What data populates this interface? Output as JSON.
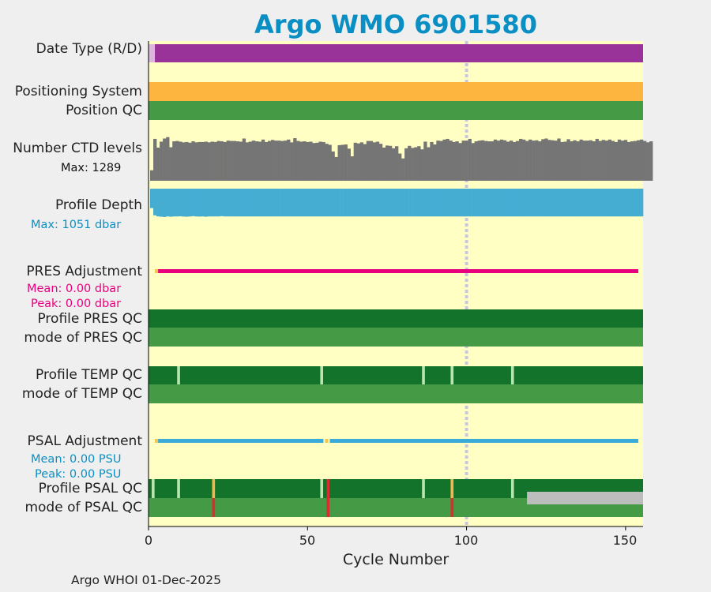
{
  "title": "Argo WMO 6901580",
  "footer": "Argo WHOI 01-Dec-2025",
  "colors": {
    "background": "#ffffc3",
    "data_type": "#993399",
    "data_type_realtime": "#ddb8dd",
    "positioning": "#fdb53f",
    "qc_good_light": "#459b45",
    "qc_good_dark": "#13732b",
    "qc_gap": "#b9e5b0",
    "qc_orange": "#f7b54d",
    "qc_red": "#d92e2e",
    "qc_grey": "#bdbdbd",
    "ctd": "#757575",
    "depth": "#45acd2",
    "pres_adj": "#e8007e",
    "psal_adj": "#3aaad8",
    "psal_adj_gap": "#f3c552",
    "marker_line": "#c6c6e6",
    "title": "#0a8fc4"
  },
  "rows": {
    "data_type": "Date Type (R/D)",
    "positioning_system": "Positioning System",
    "position_qc": "Position QC",
    "ctd_levels": "Number CTD levels",
    "ctd_max": "Max: 1289",
    "profile_depth": "Profile Depth",
    "depth_max": "Max: 1051 dbar",
    "pres_adjustment": "PRES Adjustment",
    "pres_mean": "Mean: 0.00 dbar",
    "pres_peak": "Peak: 0.00 dbar",
    "profile_pres_qc": "Profile PRES QC",
    "mode_pres_qc": "mode of PRES QC",
    "profile_temp_qc": "Profile TEMP QC",
    "mode_temp_qc": "mode of TEMP QC",
    "psal_adjustment": "PSAL Adjustment",
    "psal_mean": "Mean: 0.00 PSU",
    "psal_peak": "Peak: 0.00 PSU",
    "profile_psal_qc": "Profile PSAL QC",
    "mode_psal_qc": "mode of PSAL QC"
  },
  "chart_data": {
    "type": "bar",
    "title": "Argo WMO 6901580",
    "xlabel": "Cycle Number",
    "xlim": [
      0,
      155.5
    ],
    "xticks": [
      0,
      50,
      100,
      150
    ],
    "marker_cycle": 100,
    "data_type_realtime_cycles": [
      0,
      1
    ],
    "ctd_levels": {
      "max": 1289,
      "values": [
        300,
        1200,
        950,
        1120,
        1210,
        1250,
        960,
        1130,
        1140,
        1120,
        1100,
        1110,
        1090,
        1130,
        1100,
        1110,
        1110,
        1120,
        1100,
        1120,
        1110,
        1140,
        1130,
        1110,
        1150,
        1140,
        1140,
        1130,
        1120,
        1210,
        1100,
        1120,
        1150,
        1130,
        1120,
        1180,
        1110,
        1140,
        1170,
        1150,
        1150,
        1140,
        1150,
        1180,
        1100,
        1220,
        1140,
        1120,
        1130,
        1110,
        1120,
        1080,
        1090,
        1120,
        1110,
        1060,
        1030,
        840,
        680,
        1020,
        1030,
        1040,
        920,
        700,
        1090,
        1070,
        1100,
        1050,
        1140,
        1140,
        1100,
        1120,
        1060,
        950,
        1010,
        1000,
        930,
        990,
        780,
        640,
        930,
        1000,
        940,
        960,
        990,
        900,
        1120,
        960,
        1110,
        1040,
        1150,
        1140,
        1180,
        1200,
        1150,
        1110,
        1130,
        1080,
        1150,
        1150,
        1200,
        1080,
        1130,
        1150,
        1160,
        1140,
        1130,
        1130,
        1180,
        1150,
        1180,
        1160,
        1120,
        1150,
        1110,
        1140,
        1200,
        1180,
        1140,
        1180,
        1150,
        1160,
        1130,
        1190,
        1210,
        1170,
        1160,
        1150,
        1210,
        1110,
        1120,
        1190,
        1130,
        1160,
        1130,
        1180,
        1150,
        1150,
        1160,
        1130,
        1200,
        1140,
        1170,
        1150,
        1180,
        1140,
        1110,
        1180,
        1150,
        1170,
        1110,
        1130,
        1140,
        1160,
        1180,
        1140,
        1100,
        1130
      ]
    },
    "profile_depth": {
      "max_dbar": 1051,
      "values": [
        700,
        960,
        1000,
        1010,
        1020,
        1000,
        1010,
        1000,
        1000,
        995,
        1005,
        1010,
        1000,
        990,
        1000,
        1005,
        1000,
        1010,
        1000,
        1000,
        1000,
        1000,
        990,
        1000,
        1000,
        1000,
        1000,
        1000,
        1000,
        1000,
        1000,
        1000,
        1000,
        1000,
        1000,
        1000,
        1000,
        1000,
        1000,
        1000,
        1000,
        1000,
        1000,
        1000,
        1000,
        1000,
        1000,
        1000,
        1000,
        1000,
        1000,
        1000,
        1000,
        1000,
        1000,
        1000,
        1000,
        1000,
        1000,
        1000,
        1000,
        1000,
        1000,
        1000,
        1000,
        1000,
        1000,
        1000,
        1000,
        1000,
        1000,
        1000,
        1000,
        1000,
        1000,
        1000,
        1000,
        1000,
        1000,
        1000,
        1000,
        1000,
        1000,
        1000,
        1000,
        1000,
        1000,
        1000,
        1000,
        1000,
        1000,
        1000,
        1000,
        1000,
        1000,
        1000,
        1000,
        1000,
        1000,
        1000,
        1000,
        1000,
        1000,
        1000,
        1000,
        1000,
        1000,
        1000,
        1000,
        1000,
        1000,
        1000,
        1000,
        1000,
        1000,
        1000,
        1000,
        1000,
        1000,
        1000,
        1000,
        1000,
        1000,
        1000,
        1000,
        1000,
        1000,
        1000,
        1000,
        1000,
        1000,
        1000,
        1000,
        1000,
        1000,
        1000,
        1000,
        1000,
        1000,
        1000,
        1000,
        1000,
        1000,
        1000,
        1000,
        1000,
        1000,
        1000,
        1000,
        1000,
        1000,
        1000,
        1000,
        1000,
        1000
      ]
    },
    "pres_adjustment": {
      "mean_dbar": 0.0,
      "peak_dbar": 0.0,
      "start_cycle": 3,
      "end_cycle": 154
    },
    "temp_qc_profile_gaps": [
      9,
      54,
      86,
      95,
      114
    ],
    "psal_adjustment": {
      "mean_psu": 0.0,
      "peak_psu": 0.0,
      "segments": [
        [
          3,
          55
        ],
        [
          57,
          154
        ]
      ]
    },
    "psal_qc_profile_gaps": [
      1,
      9,
      54,
      86,
      114
    ],
    "psal_qc_profile_orange": [
      20,
      95
    ],
    "psal_qc_profile_red": [
      56
    ],
    "psal_qc_mode_red": [
      20,
      56,
      95
    ],
    "psal_qc_mode_grey_from": 119
  }
}
